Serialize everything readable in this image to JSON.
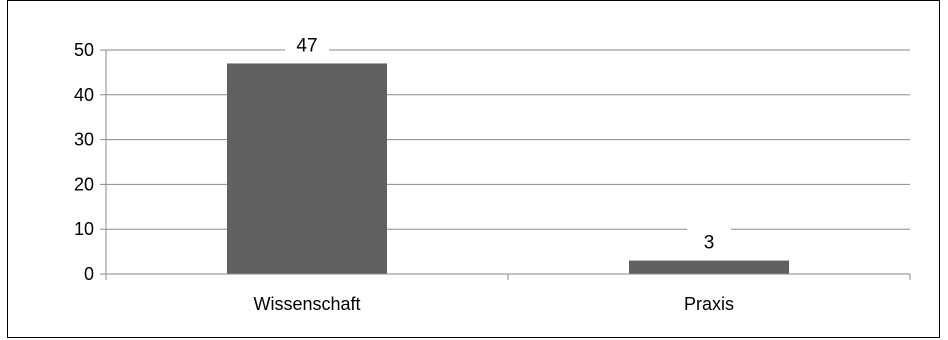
{
  "chart_data": {
    "type": "bar",
    "categories": [
      "Wissenschaft",
      "Praxis"
    ],
    "series": [
      {
        "values": [
          47,
          3
        ]
      }
    ],
    "data_labels": [
      "47",
      "3"
    ],
    "ylim": [
      0,
      50
    ],
    "yticks": [
      0,
      10,
      20,
      30,
      40,
      50
    ],
    "ytick_labels": [
      "0",
      "10",
      "20",
      "30",
      "40",
      "50"
    ],
    "grid": true,
    "legend": "none",
    "colors": {
      "bar": "#616161",
      "grid": "#8a8a8a",
      "axis": "#8a8a8a",
      "text": "#000000"
    }
  }
}
